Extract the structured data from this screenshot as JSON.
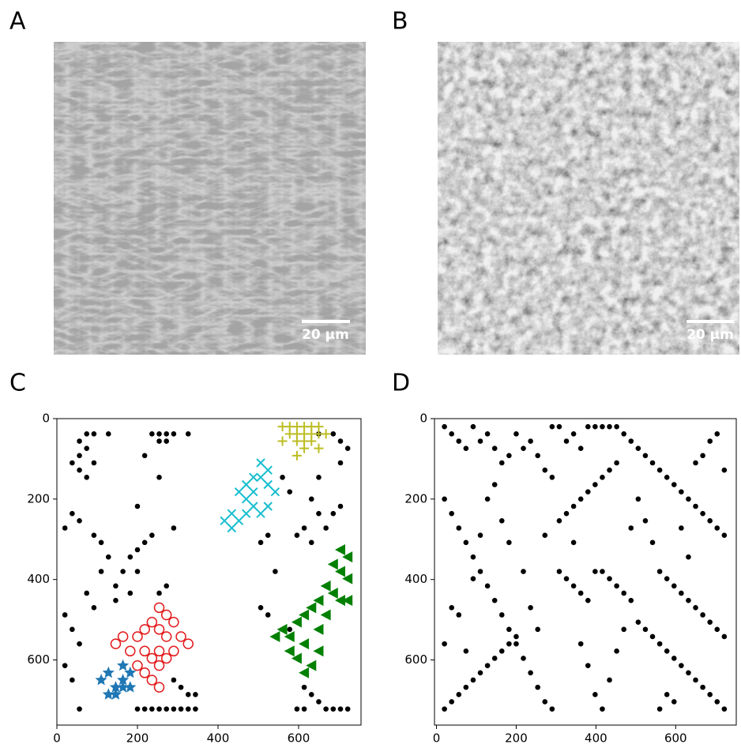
{
  "panels": [
    {
      "label": "A",
      "scale_bar": "20 µm"
    },
    {
      "label": "B",
      "scale_bar": "20 µm"
    },
    {
      "label": "C"
    },
    {
      "label": "D"
    }
  ],
  "chart_data": [
    {
      "type": "scatter",
      "xlim": [
        0,
        755
      ],
      "ylim": [
        762,
        0
      ],
      "xticks": [
        0,
        200,
        400,
        600
      ],
      "yticks": [
        0,
        200,
        400,
        600
      ],
      "series": [
        {
          "marker": "dot",
          "color": "#000000",
          "x": [
            56,
            74,
            92,
            74,
            56,
            38,
            56,
            74,
            92,
            38,
            56,
            20,
            92,
            110,
            128,
            110,
            146,
            74,
            92,
            20,
            38,
            56,
            20,
            38,
            56,
            128,
            236,
            254,
            272,
            290,
            254,
            272,
            326,
            218,
            200,
            254,
            200,
            218,
            182,
            164,
            200,
            146,
            182,
            254,
            272,
            236,
            290,
            200,
            218,
            236,
            254,
            272,
            290,
            308,
            326,
            344,
            290,
            308,
            326,
            344,
            650,
            686,
            704,
            722,
            704,
            650,
            632,
            650,
            614,
            596,
            632,
            668,
            686,
            704,
            560,
            578,
            506,
            524,
            542,
            506,
            524,
            578,
            614,
            632,
            650,
            668,
            686,
            704,
            722,
            614,
            596
          ],
          "values": [
            56,
            38,
            38,
            74,
            92,
            110,
            128,
            146,
            110,
            236,
            254,
            272,
            290,
            308,
            344,
            380,
            416,
            434,
            470,
            488,
            524,
            560,
            614,
            650,
            722,
            38,
            38,
            38,
            38,
            38,
            56,
            56,
            38,
            92,
            218,
            146,
            326,
            308,
            344,
            380,
            380,
            452,
            434,
            434,
            416,
            290,
            272,
            722,
            722,
            722,
            722,
            722,
            722,
            722,
            722,
            722,
            650,
            668,
            686,
            686,
            38,
            38,
            56,
            74,
            110,
            146,
            200,
            236,
            272,
            290,
            308,
            272,
            236,
            218,
            146,
            182,
            308,
            290,
            380,
            470,
            488,
            524,
            668,
            686,
            704,
            722,
            722,
            722,
            722,
            722,
            722
          ]
        },
        {
          "marker": "plus",
          "color": "#bcbd22",
          "x": [
            560,
            578,
            596,
            614,
            632,
            650,
            578,
            596,
            614,
            632,
            650,
            668,
            596,
            614,
            632,
            560,
            614,
            596,
            650
          ],
          "values": [
            20,
            20,
            20,
            20,
            20,
            20,
            38,
            38,
            38,
            38,
            38,
            38,
            56,
            56,
            56,
            56,
            74,
            92,
            74
          ]
        },
        {
          "marker": "x",
          "color": "#17becf",
          "x": [
            506,
            524,
            488,
            506,
            524,
            542,
            470,
            452,
            470,
            488,
            434,
            452,
            470,
            506,
            524,
            416,
            434,
            488
          ],
          "values": [
            110,
            128,
            146,
            146,
            164,
            182,
            164,
            182,
            200,
            218,
            236,
            254,
            236,
            236,
            218,
            254,
            272,
            182
          ]
        },
        {
          "marker": "triangle-left",
          "color": "#008000",
          "x": [
            704,
            722,
            686,
            704,
            722,
            668,
            686,
            704,
            650,
            632,
            614,
            668,
            596,
            650,
            560,
            578,
            542,
            614,
            578,
            596,
            632,
            614,
            650,
            722
          ],
          "values": [
            326,
            344,
            362,
            380,
            398,
            416,
            434,
            452,
            452,
            470,
            488,
            488,
            506,
            524,
            524,
            542,
            542,
            560,
            578,
            596,
            614,
            632,
            578,
            452
          ]
        },
        {
          "marker": "circle",
          "color": "#e31a1c",
          "x": [
            254,
            272,
            290,
            236,
            218,
            254,
            164,
            200,
            272,
            308,
            326,
            182,
            218,
            254,
            290,
            236,
            200,
            254,
            218,
            236,
            254,
            272,
            146
          ],
          "values": [
            470,
            488,
            506,
            506,
            524,
            524,
            542,
            542,
            542,
            542,
            560,
            578,
            578,
            578,
            578,
            596,
            614,
            614,
            632,
            650,
            668,
            596,
            560
          ]
        },
        {
          "marker": "star",
          "color": "#1f77b4",
          "x": [
            110,
            128,
            146,
            164,
            182,
            164,
            128,
            146,
            164,
            182
          ],
          "values": [
            650,
            632,
            668,
            650,
            632,
            614,
            686,
            686,
            668,
            668
          ]
        }
      ]
    },
    {
      "type": "scatter",
      "xlim": [
        -5,
        752
      ],
      "ylim": [
        762,
        0
      ],
      "xticks": [
        0,
        200,
        400,
        600
      ],
      "yticks": [
        0,
        200,
        400,
        600
      ],
      "series": [
        {
          "marker": "dot",
          "color": "#000000",
          "x": [
            20,
            38,
            56,
            74,
            92,
            110,
            128,
            146,
            164,
            182,
            200,
            218,
            236,
            254,
            272,
            290,
            308,
            326,
            344,
            362,
            380,
            398,
            416,
            434,
            452,
            470,
            488,
            506,
            524,
            542,
            560,
            578,
            596,
            614,
            632,
            650,
            668,
            686,
            704,
            722,
            20,
            38,
            56,
            74,
            92,
            110,
            128,
            146,
            164,
            182,
            200,
            218,
            236,
            254,
            272,
            290,
            20,
            38,
            56,
            74,
            92,
            110,
            128,
            146,
            164,
            182,
            200,
            308,
            326,
            344,
            362,
            380,
            398,
            416,
            434,
            452,
            470,
            488,
            506,
            524,
            542,
            560,
            578,
            596,
            614,
            632,
            650,
            668,
            686,
            704,
            722,
            308,
            326,
            344,
            362,
            380,
            398,
            416,
            434,
            452,
            560,
            578,
            596,
            614,
            632,
            650,
            668,
            686,
            704,
            722,
            38,
            56,
            20,
            74,
            92,
            110,
            128,
            146,
            164,
            182,
            218,
            236,
            254,
            272,
            290,
            344,
            362,
            380,
            398,
            416,
            434,
            452,
            470,
            488,
            506,
            524,
            542,
            560,
            578,
            596,
            614,
            632,
            650,
            668,
            686,
            704,
            722
          ],
          "values": [
            20,
            38,
            56,
            74,
            20,
            56,
            38,
            74,
            110,
            92,
            38,
            74,
            56,
            92,
            128,
            20,
            20,
            56,
            38,
            74,
            20,
            20,
            20,
            20,
            20,
            38,
            56,
            74,
            92,
            110,
            128,
            146,
            164,
            182,
            200,
            218,
            236,
            254,
            272,
            290,
            200,
            236,
            272,
            308,
            344,
            380,
            416,
            452,
            488,
            524,
            560,
            596,
            632,
            668,
            704,
            722,
            722,
            704,
            686,
            668,
            650,
            632,
            614,
            596,
            578,
            560,
            542,
            380,
            398,
            416,
            434,
            452,
            380,
            380,
            398,
            416,
            434,
            452,
            506,
            524,
            542,
            560,
            578,
            596,
            614,
            632,
            650,
            668,
            686,
            704,
            722,
            254,
            236,
            218,
            200,
            182,
            164,
            146,
            128,
            110,
            380,
            398,
            416,
            434,
            452,
            470,
            488,
            506,
            524,
            542,
            470,
            488,
            560,
            578,
            398,
            290,
            200,
            164,
            254,
            308,
            380,
            470,
            524,
            290,
            146,
            308,
            560,
            614,
            686,
            722,
            650,
            578,
            524,
            272,
            200,
            254,
            308,
            722,
            686,
            704,
            272,
            344,
            110,
            92,
            56,
            38,
            128
          ]
        }
      ]
    }
  ]
}
